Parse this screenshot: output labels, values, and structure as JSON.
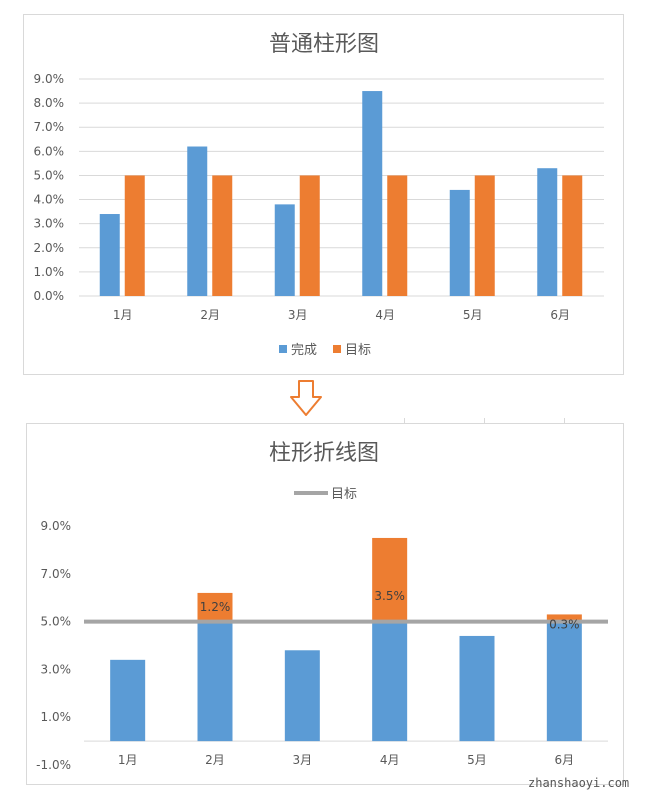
{
  "colors": {
    "blue": "#5B9BD5",
    "orange": "#ED7D31",
    "gray": "#A5A5A5",
    "grid": "#D9D9D9",
    "text": "#595959"
  },
  "arrow_icon": "down-arrow-icon",
  "watermark": "zhanshaoyi.com",
  "chart_data": [
    {
      "type": "bar",
      "title": "普通柱形图",
      "categories": [
        "1月",
        "2月",
        "3月",
        "4月",
        "5月",
        "6月"
      ],
      "series": [
        {
          "name": "完成",
          "values": [
            3.4,
            6.2,
            3.8,
            8.5,
            4.4,
            5.3
          ]
        },
        {
          "name": "目标",
          "values": [
            5.0,
            5.0,
            5.0,
            5.0,
            5.0,
            5.0
          ]
        }
      ],
      "ylim": [
        0,
        9
      ],
      "yticks": [
        "0.0%",
        "1.0%",
        "2.0%",
        "3.0%",
        "4.0%",
        "5.0%",
        "6.0%",
        "7.0%",
        "8.0%",
        "9.0%"
      ],
      "grid": true,
      "legend": "bottom"
    },
    {
      "type": "bar",
      "title": "柱形折线图",
      "categories": [
        "1月",
        "2月",
        "3月",
        "4月",
        "5月",
        "6月"
      ],
      "series": [
        {
          "values": [
            3.4,
            5.0,
            3.8,
            5.0,
            4.4,
            5.0
          ]
        },
        {
          "values": [
            0,
            1.2,
            0,
            3.5,
            0,
            0.3
          ]
        },
        {
          "name": "目标",
          "type": "line",
          "values": [
            5.0,
            5.0,
            5.0,
            5.0,
            5.0,
            5.0
          ]
        }
      ],
      "data_labels": [
        "",
        "1.2%",
        "",
        "3.5%",
        "",
        "0.3%"
      ],
      "ylim": [
        -1,
        9
      ],
      "yticks": [
        "-1.0%",
        "1.0%",
        "3.0%",
        "5.0%",
        "7.0%",
        "9.0%"
      ],
      "grid": false,
      "legend": "top"
    }
  ]
}
